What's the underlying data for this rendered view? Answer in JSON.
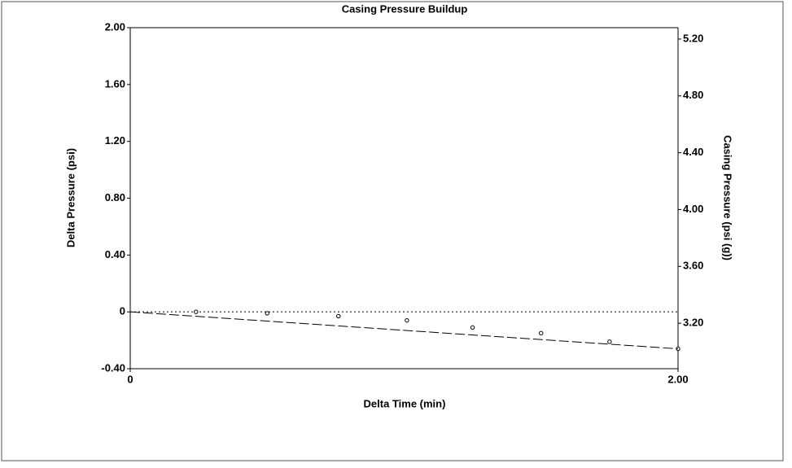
{
  "chart_data": {
    "type": "scatter",
    "title": "Casing Pressure Buildup",
    "x_label": "Delta Time (min)",
    "y_label": "Delta Pressure (psi)",
    "y2_label": "Casing Pressure (psi (g))",
    "xlim": [
      0,
      2
    ],
    "xticks": [
      0,
      {
        "value": 2,
        "label": "2.00"
      }
    ],
    "ylim": [
      -0.4,
      2.0
    ],
    "yticks": [
      {
        "value": -0.4,
        "label": "-0.40"
      },
      0,
      {
        "value": 0.4,
        "label": "0.40"
      },
      {
        "value": 0.8,
        "label": "0.80"
      },
      {
        "value": 1.2,
        "label": "1.20"
      },
      {
        "value": 1.6,
        "label": "1.60"
      },
      {
        "value": 2.0,
        "label": "2.00"
      }
    ],
    "y2lim": [
      2.88,
      5.28
    ],
    "y2ticks": [
      {
        "value": 3.2,
        "label": "3.20"
      },
      {
        "value": 3.6,
        "label": "3.60"
      },
      {
        "value": 4.0,
        "label": "4.00"
      },
      {
        "value": 4.4,
        "label": "4.40"
      },
      {
        "value": 4.8,
        "label": "4.80"
      },
      {
        "value": 5.2,
        "label": "5.20"
      }
    ],
    "series": [
      {
        "color": "#000000",
        "x": [
          0.24,
          0.5,
          0.76,
          1.01,
          1.25,
          1.5,
          1.75,
          2.0
        ],
        "values": [
          0,
          -0.01,
          -0.03,
          -0.06,
          -0.11,
          -0.15,
          -0.21,
          -0.26
        ]
      },
      {
        "color": "#000000",
        "style": "dashed",
        "x": [
          0,
          2
        ],
        "values": [
          0,
          -0.26
        ]
      }
    ]
  }
}
